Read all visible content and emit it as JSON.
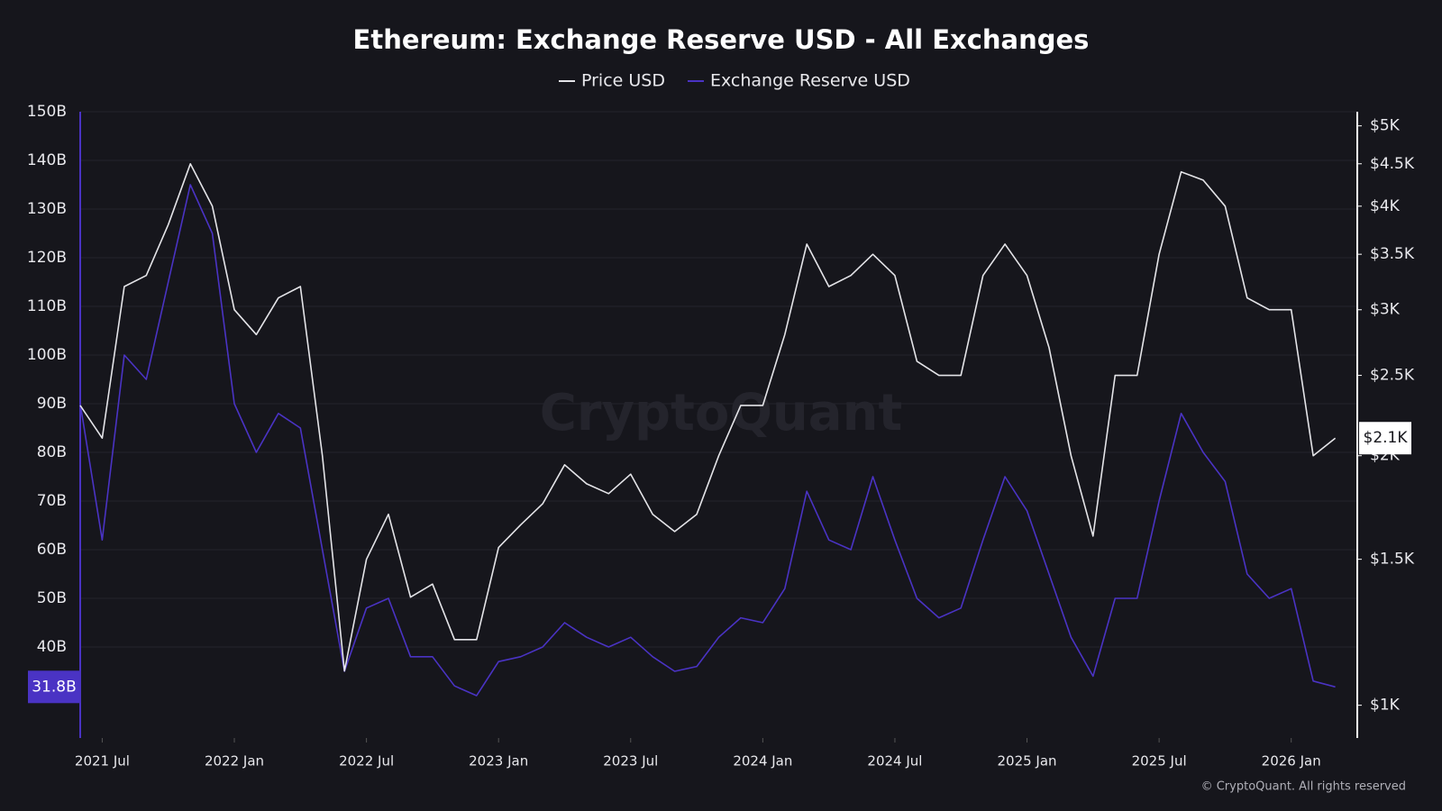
{
  "chart_data": {
    "type": "line",
    "title": "Ethereum: Exchange Reserve USD - All Exchanges",
    "watermark": "CryptoQuant",
    "copyright": "© CryptoQuant. All rights reserved",
    "x": [
      "2021-06",
      "2021-07",
      "2021-08",
      "2021-09",
      "2021-10",
      "2021-11",
      "2021-12",
      "2022-01",
      "2022-02",
      "2022-03",
      "2022-04",
      "2022-05",
      "2022-06",
      "2022-07",
      "2022-08",
      "2022-09",
      "2022-10",
      "2022-11",
      "2022-12",
      "2023-01",
      "2023-02",
      "2023-03",
      "2023-04",
      "2023-05",
      "2023-06",
      "2023-07",
      "2023-08",
      "2023-09",
      "2023-10",
      "2023-11",
      "2023-12",
      "2024-01",
      "2024-02",
      "2024-03",
      "2024-04",
      "2024-05",
      "2024-06",
      "2024-07",
      "2024-08",
      "2024-09",
      "2024-10",
      "2024-11",
      "2024-12",
      "2025-01",
      "2025-02",
      "2025-03",
      "2025-04",
      "2025-05",
      "2025-06",
      "2025-07",
      "2025-08",
      "2025-09",
      "2025-10",
      "2025-11",
      "2025-12",
      "2026-01",
      "2026-02",
      "2026-03"
    ],
    "xlim": [
      "2021-06",
      "2026-04"
    ],
    "xticks": [
      {
        "value": "2021-07",
        "label": "2021 Jul"
      },
      {
        "value": "2022-01",
        "label": "2022 Jan"
      },
      {
        "value": "2022-07",
        "label": "2022 Jul"
      },
      {
        "value": "2023-01",
        "label": "2023 Jan"
      },
      {
        "value": "2023-07",
        "label": "2023 Jul"
      },
      {
        "value": "2024-01",
        "label": "2024 Jan"
      },
      {
        "value": "2024-07",
        "label": "2024 Jul"
      },
      {
        "value": "2025-01",
        "label": "2025 Jan"
      },
      {
        "value": "2025-07",
        "label": "2025 Jul"
      },
      {
        "value": "2026-01",
        "label": "2026 Jan"
      }
    ],
    "series": [
      {
        "name": "Price USD",
        "color": "#e4e4e8",
        "axis": "y2",
        "values": [
          2300,
          2100,
          3200,
          3300,
          3800,
          4500,
          4000,
          3000,
          2800,
          3100,
          3200,
          2000,
          1100,
          1500,
          1700,
          1350,
          1400,
          1200,
          1200,
          1550,
          1650,
          1750,
          1950,
          1850,
          1800,
          1900,
          1700,
          1620,
          1700,
          2000,
          2300,
          2300,
          2800,
          3600,
          3200,
          3300,
          3500,
          3300,
          2600,
          2500,
          2500,
          3300,
          3600,
          3300,
          2700,
          2000,
          1600,
          2500,
          2500,
          3500,
          4400,
          4300,
          4000,
          3100,
          3000,
          3000,
          2000,
          2100
        ]
      },
      {
        "name": "Exchange Reserve USD",
        "color": "#4a33c4",
        "axis": "y",
        "values": [
          90,
          62,
          100,
          95,
          115,
          135,
          125,
          90,
          80,
          88,
          85,
          60,
          35,
          48,
          50,
          38,
          38,
          32,
          30,
          37,
          38,
          40,
          45,
          42,
          40,
          42,
          38,
          35,
          36,
          42,
          46,
          45,
          52,
          72,
          62,
          60,
          75,
          62,
          50,
          46,
          48,
          62,
          75,
          68,
          55,
          42,
          34,
          50,
          50,
          70,
          88,
          80,
          74,
          55,
          50,
          52,
          33,
          31.8
        ]
      }
    ],
    "ylim": [
      21.3,
      150
    ],
    "yticks": [
      {
        "value": 40,
        "label": "40B"
      },
      {
        "value": 50,
        "label": "50B"
      },
      {
        "value": 60,
        "label": "60B"
      },
      {
        "value": 70,
        "label": "70B"
      },
      {
        "value": 80,
        "label": "80B"
      },
      {
        "value": 90,
        "label": "90B"
      },
      {
        "value": 100,
        "label": "100B"
      },
      {
        "value": 110,
        "label": "110B"
      },
      {
        "value": 120,
        "label": "120B"
      },
      {
        "value": 130,
        "label": "130B"
      },
      {
        "value": 140,
        "label": "140B"
      },
      {
        "value": 150,
        "label": "150B"
      }
    ],
    "y2lim": [
      913,
      5200
    ],
    "y2_log": true,
    "y2ticks": [
      {
        "value": 1000,
        "label": "$1K"
      },
      {
        "value": 1500,
        "label": "$1.5K"
      },
      {
        "value": 2000,
        "label": "$2K"
      },
      {
        "value": 2500,
        "label": "$2.5K"
      },
      {
        "value": 3000,
        "label": "$3K"
      },
      {
        "value": 3500,
        "label": "$3.5K"
      },
      {
        "value": 4000,
        "label": "$4K"
      },
      {
        "value": 4500,
        "label": "$4.5K"
      },
      {
        "value": 5000,
        "label": "$5K"
      }
    ],
    "grid": true,
    "annotations": [
      {
        "text": "31.8B",
        "value": 31.8,
        "axis": "y"
      },
      {
        "text": "$2.1K",
        "value": 2100,
        "axis": "y2"
      }
    ]
  }
}
